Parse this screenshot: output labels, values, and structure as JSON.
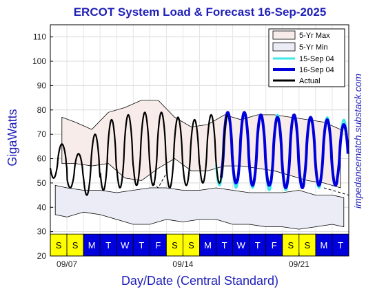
{
  "chart_data": {
    "type": "line",
    "title": "ERCOT System Load & Forecast 16-Sep-2025",
    "xlabel": "Day/Date (Central Standard)",
    "ylabel": "GigaWatts",
    "ylim": [
      20,
      115
    ],
    "yticks": [
      20,
      30,
      40,
      50,
      60,
      70,
      80,
      90,
      100,
      110
    ],
    "xlim": [
      0,
      18
    ],
    "date_ticks": [
      {
        "x": 1,
        "label": "09/07"
      },
      {
        "x": 8,
        "label": "09/14"
      },
      {
        "x": 15,
        "label": "09/21"
      }
    ],
    "grid": true,
    "legend_position": "top-right",
    "legend": [
      "5-Yr Max",
      "5-Yr Min",
      "15-Sep 04",
      "16-Sep 04",
      "Actual"
    ],
    "colors": {
      "max_fill": "#f7ece9",
      "min_fill": "#ececf7",
      "forecast_prev": "#3ce8e8",
      "forecast_curr": "#0000dd",
      "actual": "#000000",
      "weekend": "#ffff00",
      "weekday": "#0000dd",
      "title": "#1f1fb8"
    },
    "day_strip": [
      "S",
      "S",
      "M",
      "T",
      "W",
      "T",
      "F",
      "S",
      "S",
      "M",
      "T",
      "W",
      "T",
      "F",
      "S",
      "S",
      "M",
      "T"
    ],
    "series": [
      {
        "name": "5-Yr Max",
        "kind": "band",
        "upper_x": [
          0.7,
          1.5,
          2.5,
          3.5,
          4.5,
          5.5,
          6.5,
          7.5,
          8.5,
          9.5,
          10.5,
          11.5,
          12.5,
          13.5,
          14.5,
          15.5,
          16.5,
          17.5
        ],
        "upper": [
          77,
          75,
          72,
          79,
          81,
          84,
          84,
          77,
          73,
          74,
          78,
          76,
          78,
          78,
          77,
          76,
          75,
          72
        ],
        "lower_x": [
          0.7,
          1.5,
          2.5,
          3.5,
          4.5,
          5.5,
          6.5,
          7.5,
          8.5,
          9.5,
          10.5,
          11.5,
          12.5,
          13.5,
          14.5,
          15.5,
          16.5,
          17.5
        ],
        "lower": [
          58,
          58,
          57,
          58,
          52,
          51,
          56,
          60,
          55,
          55,
          57,
          57,
          56,
          55,
          53,
          51,
          50,
          48
        ]
      },
      {
        "name": "5-Yr Min",
        "kind": "band",
        "upper_x": [
          0.3,
          1.0,
          2.0,
          3.0,
          4.0,
          5.0,
          6.0,
          7.0,
          8.0,
          9.0,
          10.0,
          11.0,
          12.0,
          13.0,
          14.0,
          15.0,
          16.0,
          17.0,
          17.7
        ],
        "upper": [
          49,
          48,
          47,
          47,
          46,
          47,
          48,
          48,
          47,
          47,
          48,
          47,
          46,
          46,
          46,
          47,
          45,
          45,
          44
        ],
        "lower_x": [
          0.3,
          1.0,
          2.0,
          3.0,
          4.0,
          5.0,
          6.0,
          7.0,
          8.0,
          9.0,
          10.0,
          11.0,
          12.0,
          13.0,
          14.0,
          15.0,
          16.0,
          17.0,
          17.7
        ],
        "lower": [
          37,
          36,
          38,
          37,
          35,
          33,
          33,
          35,
          34,
          35,
          35,
          33,
          33,
          32,
          32,
          31,
          32,
          33,
          32
        ]
      },
      {
        "name": "Actual",
        "kind": "oscillation",
        "day_start": 0,
        "day_end": 10.7,
        "peaks": [
          66,
          62,
          70,
          76,
          78,
          79,
          79,
          77,
          76,
          78,
          78
        ],
        "troughs": [
          52,
          48,
          45,
          47,
          48,
          49,
          49,
          48,
          49,
          50,
          50
        ]
      },
      {
        "name": "15-Sep 04",
        "kind": "oscillation",
        "day_start": 10.0,
        "day_end": 17.9,
        "peaks": [
          78,
          79,
          78,
          78,
          78,
          77,
          77,
          76
        ],
        "troughs": [
          49,
          48,
          48,
          47,
          47,
          48,
          48,
          49
        ]
      },
      {
        "name": "16-Sep 04",
        "kind": "oscillation",
        "day_start": 10.3,
        "day_end": 17.95,
        "peaks": [
          79,
          79,
          78,
          77,
          78,
          77,
          76,
          74
        ],
        "troughs": [
          50,
          49,
          49,
          48,
          48,
          49,
          49,
          50
        ]
      },
      {
        "name": "Actual-smoothed-dashed",
        "kind": "dashed",
        "x": [
          6.2,
          6.5,
          7.0,
          16.5,
          17.5,
          18.0
        ],
        "y": [
          50,
          48,
          54,
          48,
          46,
          45
        ]
      }
    ]
  },
  "watermark": "impedancematch.substack.com"
}
